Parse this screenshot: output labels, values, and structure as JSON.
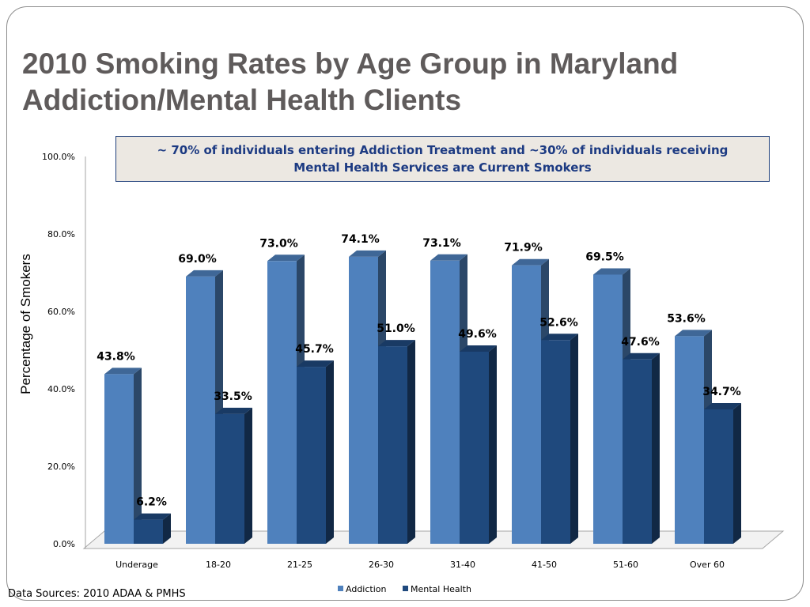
{
  "slide": {
    "title_line1": "2010 Smoking Rates by Age Group in Maryland",
    "title_line2": "Addiction/Mental Health Clients",
    "callout": "~ 70% of individuals entering Addiction Treatment and ~30% of individuals receiving Mental Health Services are Current Smokers",
    "sources": "Data Sources: 2010 ADAA & PMHS"
  },
  "chart_data": {
    "type": "bar",
    "title": "2010 Smoking Rates by Age Group in Maryland Addiction/Mental Health Clients",
    "ylabel": "Percentage  of Smokers",
    "xlabel": "",
    "ylim": [
      0,
      100
    ],
    "yticks": [
      "0.0%",
      "20.0%",
      "40.0%",
      "60.0%",
      "80.0%",
      "100.0%"
    ],
    "categories": [
      "Underage",
      "18-20",
      "21-25",
      "26-30",
      "31-40",
      "41-50",
      "51-60",
      "Over 60"
    ],
    "series": [
      {
        "name": "Addiction",
        "color": "#4f81bd",
        "values": [
          43.8,
          69.0,
          73.0,
          74.1,
          73.1,
          71.9,
          69.5,
          53.6
        ],
        "labels": [
          "43.8%",
          "69.0%",
          "73.0%",
          "74.1%",
          "73.1%",
          "71.9%",
          "69.5%",
          "53.6%"
        ]
      },
      {
        "name": "Mental Health",
        "color": "#1f497d",
        "values": [
          6.2,
          33.5,
          45.7,
          51.0,
          49.6,
          52.6,
          47.6,
          34.7
        ],
        "labels": [
          "6.2%",
          "33.5%",
          "45.7%",
          "51.0%",
          "49.6%",
          "52.6%",
          "47.6%",
          "34.7%"
        ]
      }
    ],
    "legend": "bottom",
    "grid": false,
    "style": "3d"
  }
}
